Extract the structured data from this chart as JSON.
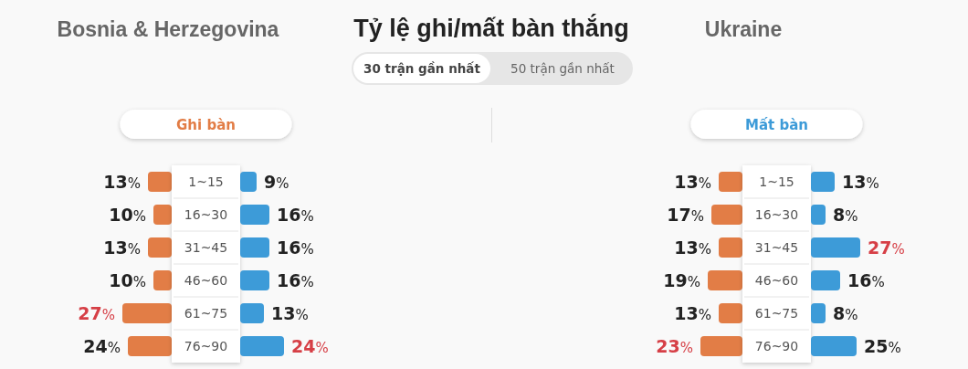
{
  "chart_data": [
    {
      "type": "other",
      "title": "Tỷ lệ ghi/mất bàn thắng",
      "annotations": [
        "Bosnia & Herzegovina",
        "Ukraine",
        "30 trận gần nhất",
        "50 trận gần nhất"
      ]
    },
    {
      "type": "bar",
      "orientation": "horizontal",
      "title": "Ghi bàn",
      "categories": [
        "1~15",
        "16~30",
        "31~45",
        "46~60",
        "61~75",
        "76~90"
      ],
      "values": [
        13,
        10,
        13,
        10,
        27,
        24
      ],
      "value_labels": [
        "13%",
        "10%",
        "13%",
        "10%",
        "27%",
        "24%"
      ],
      "color": "#e27d46",
      "tick_labels": "y"
    },
    {
      "type": "bar",
      "orientation": "horizontal",
      "categories": [
        null,
        null,
        null,
        null,
        null,
        null
      ],
      "values": [
        9,
        16,
        16,
        16,
        13,
        24
      ],
      "value_labels": [
        "9%",
        "16%",
        "16%",
        "16%",
        "13%",
        "24%"
      ],
      "color": "#3d9bd8",
      "tick_labels": false
    },
    {
      "type": "bar",
      "orientation": "horizontal",
      "categories": [
        "1~15",
        "16~30",
        "31~45",
        "46~60",
        "61~75",
        "76~90"
      ],
      "values": [
        13,
        17,
        13,
        19,
        13,
        23
      ],
      "value_labels": [
        "13%",
        "17%",
        "13%",
        "19%",
        "13%",
        "23%"
      ],
      "color": "#e27d46",
      "tick_labels": "y"
    },
    {
      "type": "bar",
      "orientation": "horizontal",
      "title": "Mất bàn",
      "categories": [
        null,
        null,
        null,
        null,
        null,
        null
      ],
      "values": [
        13,
        8,
        27,
        16,
        8,
        25
      ],
      "value_labels": [
        "13%",
        "8%",
        "27%",
        "16%",
        "8%",
        "25%"
      ],
      "color": "#3d9bd8",
      "tick_labels": false
    }
  ]
}
